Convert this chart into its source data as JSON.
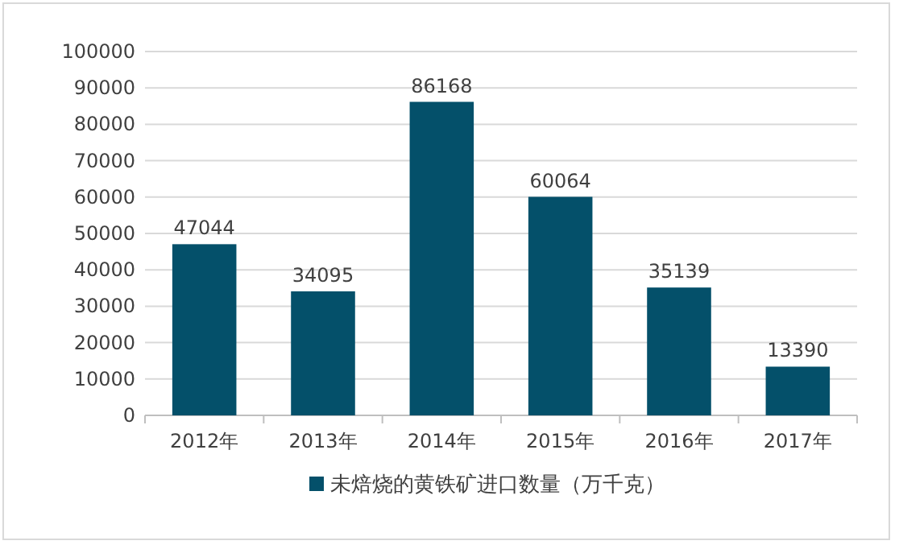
{
  "chart_data": {
    "type": "bar",
    "categories": [
      "2012年",
      "2013年",
      "2014年",
      "2015年",
      "2016年",
      "2017年"
    ],
    "series": [
      {
        "name": "未焙烧的黄铁矿进口数量（万千克）",
        "color": "#04506a",
        "values": [
          47044,
          34095,
          86168,
          60064,
          35139,
          13390
        ]
      }
    ],
    "ylim": [
      0,
      100000
    ],
    "yticks": [
      0,
      10000,
      20000,
      30000,
      40000,
      50000,
      60000,
      70000,
      80000,
      90000,
      100000
    ],
    "grid": "y",
    "data_labels": true,
    "legend": "bottom"
  }
}
